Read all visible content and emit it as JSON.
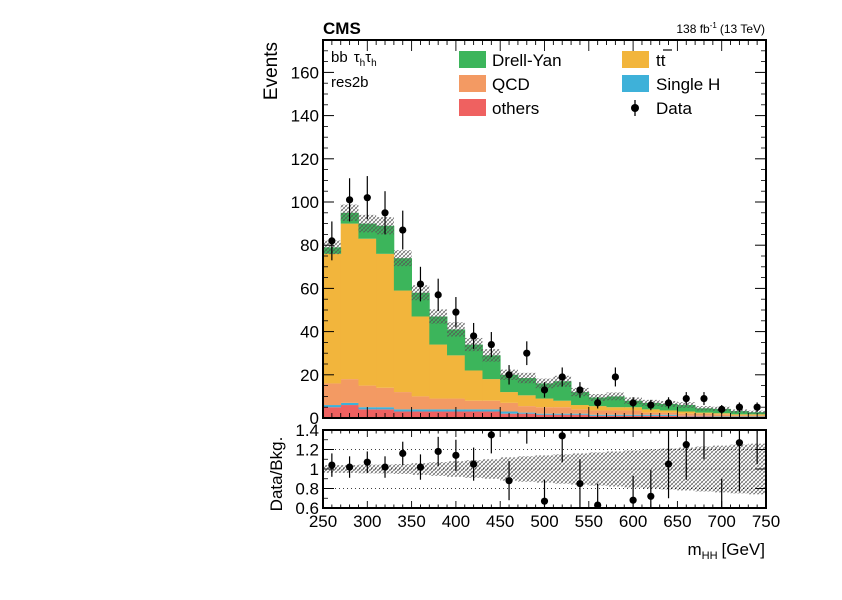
{
  "chart_data": {
    "type": "stacked-histogram",
    "header": {
      "experiment": "CMS",
      "lumi": "138 fb",
      "lumi_sup": "-1",
      "energy": "(13 TeV)"
    },
    "channel": {
      "prefix": "bb",
      "tau": "τ",
      "sub": "h"
    },
    "category": "res2b",
    "legend_placement": "top",
    "colors": {
      "dy": "#3cb55b",
      "ttbar": "#f2b53c",
      "qcd": "#f39a63",
      "singleh": "#3eb1d9",
      "others": "#ef6160",
      "data": "#000000"
    },
    "legend": {
      "dy": "Drell-Yan",
      "ttbar": "tt",
      "qcd": "QCD",
      "singleh": "Single H",
      "others": "others",
      "data": "Data"
    },
    "main": {
      "ylabel": "Events",
      "ylim": [
        0,
        175
      ],
      "yticks": [
        "0",
        "20",
        "40",
        "60",
        "80",
        "100",
        "120",
        "140",
        "160"
      ]
    },
    "ratio": {
      "ylabel": "Data/Bkg.",
      "ylim": [
        0.6,
        1.4
      ],
      "yticks": [
        "0.6",
        "0.8",
        "1",
        "1.2",
        "1.4"
      ]
    },
    "x": {
      "label": "m",
      "label_sub": "HH",
      "unit": "[GeV]",
      "xlim": [
        250,
        750
      ],
      "ticks": [
        "250",
        "300",
        "350",
        "400",
        "450",
        "500",
        "550",
        "600",
        "650",
        "700",
        "750"
      ]
    },
    "bin_edges": [
      250,
      270,
      290,
      310,
      330,
      350,
      370,
      390,
      410,
      430,
      450,
      470,
      490,
      510,
      530,
      550,
      570,
      590,
      610,
      630,
      650,
      670,
      690,
      710,
      730,
      750
    ],
    "series": [
      {
        "key": "others",
        "name": "others",
        "values": [
          5,
          6,
          4,
          4,
          3,
          3,
          3,
          3,
          3,
          3,
          2,
          2,
          1.5,
          1.5,
          1.5,
          1,
          1,
          1,
          1,
          1,
          0.8,
          0.8,
          0.5,
          0.5,
          0.5
        ]
      },
      {
        "key": "singleh",
        "name": "Single H",
        "values": [
          1,
          1,
          1,
          1,
          1,
          1,
          1,
          1,
          1,
          1,
          1,
          0.5,
          0.5,
          0.5,
          0.5,
          0.5,
          0.5,
          0.5,
          0.5,
          0.5,
          0.2,
          0.2,
          0.2,
          0.2,
          0.2
        ]
      },
      {
        "key": "qcd",
        "name": "QCD",
        "values": [
          10,
          11,
          10,
          9,
          8,
          6,
          5,
          5,
          4,
          4,
          4,
          3,
          3,
          3,
          2,
          2,
          2,
          2,
          1,
          1,
          1,
          1,
          1,
          0.5,
          0.5
        ]
      },
      {
        "key": "ttbar",
        "name": "tt",
        "values": [
          60,
          72,
          68,
          62,
          47,
          37,
          25,
          20,
          14,
          10,
          5,
          5,
          4,
          3,
          2,
          2,
          1.5,
          1.5,
          1.5,
          1,
          1,
          0.5,
          0.5,
          0.5,
          0.5
        ]
      },
      {
        "key": "dy",
        "name": "Drell-Yan",
        "values": [
          3,
          5,
          7,
          13,
          15,
          11,
          13,
          12,
          12,
          11,
          8,
          8,
          7,
          9,
          6,
          4,
          5,
          3,
          3,
          3,
          3,
          2,
          2,
          1.5,
          1
        ]
      }
    ],
    "data": {
      "name": "Data",
      "values": [
        82,
        101,
        102,
        95,
        87,
        62,
        57,
        49,
        38,
        34,
        20,
        30,
        13,
        19,
        13,
        7,
        19,
        7,
        6,
        7,
        9,
        9,
        4,
        5,
        5
      ],
      "errors": [
        9,
        10,
        10,
        10,
        9,
        8,
        7.5,
        7,
        6,
        5.8,
        4.5,
        5.5,
        3.6,
        4.4,
        3.6,
        2.6,
        4.4,
        2.6,
        2.4,
        2.6,
        3,
        3,
        2,
        2.2,
        2.2
      ],
      "ratio": [
        1.04,
        1.02,
        1.07,
        1.02,
        1.16,
        1.02,
        1.18,
        1.14,
        1.05,
        1.35,
        0.88,
        1.5,
        0.67,
        1.34,
        0.85,
        0.63,
        1.7,
        0.68,
        0.72,
        1.05,
        1.25,
        1.55,
        0.5,
        1.27,
        1.6
      ],
      "ratio_err": [
        0.12,
        0.11,
        0.11,
        0.11,
        0.12,
        0.13,
        0.15,
        0.16,
        0.17,
        0.19,
        0.2,
        0.24,
        0.22,
        0.27,
        0.25,
        0.22,
        0.33,
        0.25,
        0.27,
        0.35,
        0.36,
        0.45,
        0.4,
        0.5,
        0.55
      ]
    },
    "syst_fraction": [
      0.04,
      0.04,
      0.045,
      0.045,
      0.05,
      0.06,
      0.07,
      0.08,
      0.09,
      0.1,
      0.12,
      0.13,
      0.14,
      0.15,
      0.16,
      0.17,
      0.18,
      0.19,
      0.2,
      0.21,
      0.22,
      0.23,
      0.24,
      0.25,
      0.26
    ]
  }
}
